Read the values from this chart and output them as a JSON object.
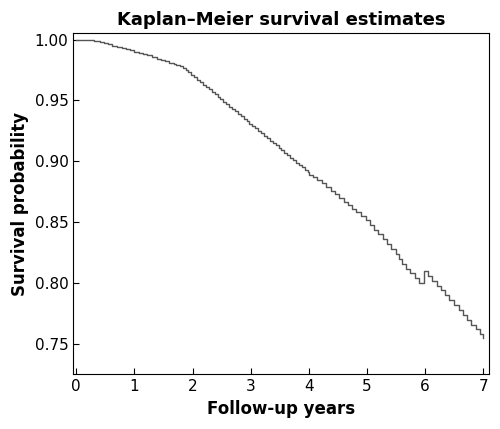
{
  "title": "Kaplan–Meier survival estimates",
  "xlabel": "Follow-up years",
  "ylabel": "Survival probability",
  "xlim": [
    -0.05,
    7.1
  ],
  "ylim": [
    0.725,
    1.005
  ],
  "xticks": [
    0,
    1,
    2,
    3,
    4,
    5,
    6,
    7
  ],
  "yticks": [
    0.75,
    0.8,
    0.85,
    0.9,
    0.95,
    1.0
  ],
  "line_color": "#555555",
  "line_width": 1.0,
  "background_color": "#ffffff",
  "title_fontsize": 13,
  "label_fontsize": 12,
  "tick_fontsize": 11,
  "step_times": [
    0.0,
    0.3,
    0.4,
    0.48,
    0.55,
    0.62,
    0.7,
    0.78,
    0.85,
    0.92,
    1.0,
    1.08,
    1.15,
    1.22,
    1.3,
    1.38,
    1.45,
    1.52,
    1.6,
    1.68,
    1.72,
    1.78,
    1.83,
    1.88,
    1.93,
    1.98,
    2.03,
    2.08,
    2.13,
    2.18,
    2.23,
    2.28,
    2.33,
    2.38,
    2.43,
    2.48,
    2.53,
    2.58,
    2.63,
    2.68,
    2.73,
    2.78,
    2.83,
    2.88,
    2.93,
    2.98,
    3.03,
    3.08,
    3.13,
    3.18,
    3.23,
    3.28,
    3.33,
    3.38,
    3.43,
    3.48,
    3.53,
    3.58,
    3.63,
    3.68,
    3.73,
    3.78,
    3.83,
    3.88,
    3.93,
    3.98,
    4.0,
    4.08,
    4.15,
    4.22,
    4.3,
    4.38,
    4.45,
    4.52,
    4.6,
    4.68,
    4.75,
    4.82,
    4.9,
    4.98,
    5.05,
    5.12,
    5.2,
    5.28,
    5.35,
    5.42,
    5.5,
    5.55,
    5.6,
    5.68,
    5.75,
    5.82,
    5.9,
    5.98,
    6.05,
    6.12,
    6.2,
    6.28,
    6.35,
    6.42,
    6.5,
    6.58,
    6.65,
    6.72,
    6.8,
    6.88,
    6.95,
    7.0
  ],
  "step_values": [
    1.0,
    0.999,
    0.998,
    0.997,
    0.996,
    0.995,
    0.994,
    0.993,
    0.992,
    0.991,
    0.99,
    0.989,
    0.988,
    0.987,
    0.986,
    0.984,
    0.983,
    0.982,
    0.981,
    0.98,
    0.979,
    0.978,
    0.977,
    0.975,
    0.973,
    0.971,
    0.969,
    0.967,
    0.965,
    0.963,
    0.961,
    0.959,
    0.957,
    0.955,
    0.953,
    0.951,
    0.949,
    0.947,
    0.945,
    0.943,
    0.941,
    0.939,
    0.937,
    0.935,
    0.933,
    0.931,
    0.929,
    0.927,
    0.925,
    0.923,
    0.921,
    0.919,
    0.917,
    0.915,
    0.913,
    0.911,
    0.909,
    0.907,
    0.905,
    0.903,
    0.901,
    0.899,
    0.897,
    0.895,
    0.893,
    0.891,
    0.889,
    0.887,
    0.885,
    0.882,
    0.879,
    0.876,
    0.873,
    0.87,
    0.867,
    0.864,
    0.861,
    0.858,
    0.855,
    0.852,
    0.848,
    0.844,
    0.84,
    0.836,
    0.832,
    0.828,
    0.824,
    0.82,
    0.816,
    0.812,
    0.808,
    0.804,
    0.8,
    0.81,
    0.806,
    0.802,
    0.798,
    0.794,
    0.79,
    0.786,
    0.782,
    0.778,
    0.774,
    0.77,
    0.766,
    0.762,
    0.758,
    0.755
  ]
}
